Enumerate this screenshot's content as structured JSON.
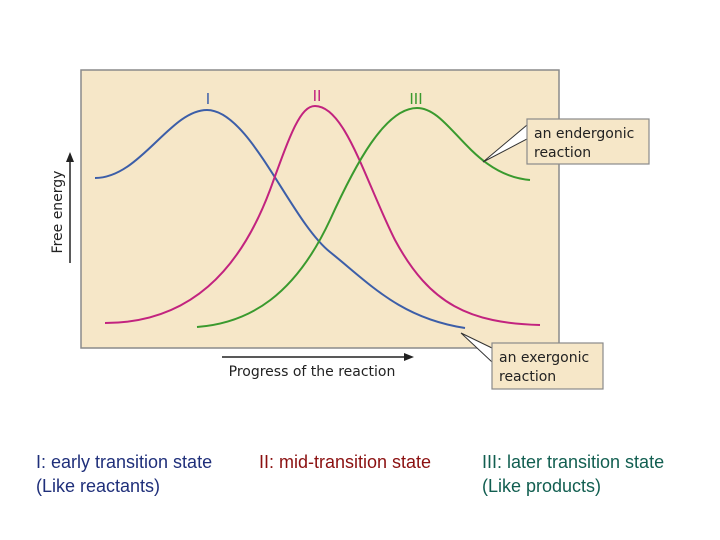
{
  "diagram": {
    "curve_labels": {
      "i": "I",
      "ii": "II",
      "iii": "III"
    },
    "y_axis_label": "Free energy",
    "x_axis_label": "Progress of the reaction",
    "callout_endergonic": {
      "line1": "an endergonic",
      "line2": "reaction"
    },
    "callout_exergonic": {
      "line1": "an exergonic",
      "line2": "reaction"
    }
  },
  "captions": {
    "c1": {
      "line1": "I: early transition state",
      "line2": "(Like reactants)"
    },
    "c2": {
      "line1": "II: mid-transition state"
    },
    "c3": {
      "line1": "III: later transition state",
      "line2": "(Like products)"
    }
  },
  "colors": {
    "panel_bg": "#f6e7c8",
    "panel_border": "#8a8a8a",
    "curve_i": "#3c5ea8",
    "curve_ii": "#c2237f",
    "curve_iii": "#3a9a2e",
    "label_i": "#3c5ea8",
    "label_ii": "#c2237f",
    "label_iii": "#3a9a2e"
  }
}
